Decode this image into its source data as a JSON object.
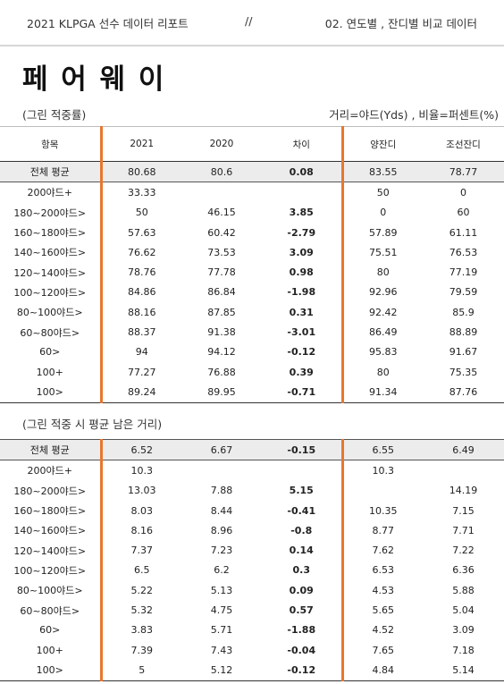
{
  "header": {
    "left": "2021 KLPGA 선수 데이터 리포트",
    "mid": "//",
    "right": "02. 연도별 , 잔디별 비교 데이터"
  },
  "title": "페 어 웨 이",
  "units_note": "거리=야드(Yds) , 비율=퍼센트(%)",
  "columns": [
    "항목",
    "2021",
    "2020",
    "차이",
    "양잔디",
    "조선잔디"
  ],
  "table1": {
    "caption": "(그린 적중률)",
    "rows": [
      [
        "전체 평균",
        "80.68",
        "80.6",
        "0.08",
        "83.55",
        "78.77"
      ],
      [
        "200야드+",
        "33.33",
        "",
        "",
        "50",
        "0"
      ],
      [
        "180~200야드>",
        "50",
        "46.15",
        "3.85",
        "0",
        "60"
      ],
      [
        "160~180야드>",
        "57.63",
        "60.42",
        "-2.79",
        "57.89",
        "61.11"
      ],
      [
        "140~160야드>",
        "76.62",
        "73.53",
        "3.09",
        "75.51",
        "76.53"
      ],
      [
        "120~140야드>",
        "78.76",
        "77.78",
        "0.98",
        "80",
        "77.19"
      ],
      [
        "100~120야드>",
        "84.86",
        "86.84",
        "-1.98",
        "92.96",
        "79.59"
      ],
      [
        "80~100야드>",
        "88.16",
        "87.85",
        "0.31",
        "92.42",
        "85.9"
      ],
      [
        "60~80야드>",
        "88.37",
        "91.38",
        "-3.01",
        "86.49",
        "88.89"
      ],
      [
        "60>",
        "94",
        "94.12",
        "-0.12",
        "95.83",
        "91.67"
      ],
      [
        "100+",
        "77.27",
        "76.88",
        "0.39",
        "80",
        "75.35"
      ],
      [
        "100>",
        "89.24",
        "89.95",
        "-0.71",
        "91.34",
        "87.76"
      ]
    ]
  },
  "table2": {
    "caption": "(그린 적중 시 평균 남은 거리)",
    "rows": [
      [
        "전체 평균",
        "6.52",
        "6.67",
        "-0.15",
        "6.55",
        "6.49"
      ],
      [
        "200야드+",
        "10.3",
        "",
        "",
        "10.3",
        ""
      ],
      [
        "180~200야드>",
        "13.03",
        "7.88",
        "5.15",
        "",
        "14.19"
      ],
      [
        "160~180야드>",
        "8.03",
        "8.44",
        "-0.41",
        "10.35",
        "7.15"
      ],
      [
        "140~160야드>",
        "8.16",
        "8.96",
        "-0.8",
        "8.77",
        "7.71"
      ],
      [
        "120~140야드>",
        "7.37",
        "7.23",
        "0.14",
        "7.62",
        "7.22"
      ],
      [
        "100~120야드>",
        "6.5",
        "6.2",
        "0.3",
        "6.53",
        "6.36"
      ],
      [
        "80~100야드>",
        "5.22",
        "5.13",
        "0.09",
        "4.53",
        "5.88"
      ],
      [
        "60~80야드>",
        "5.32",
        "4.75",
        "0.57",
        "5.65",
        "5.04"
      ],
      [
        "60>",
        "3.83",
        "5.71",
        "-1.88",
        "4.52",
        "3.09"
      ],
      [
        "100+",
        "7.39",
        "7.43",
        "-0.04",
        "7.65",
        "7.18"
      ],
      [
        "100>",
        "5",
        "5.12",
        "-0.12",
        "4.84",
        "5.14"
      ]
    ]
  },
  "colors": {
    "accent": "#e8772e",
    "avg_row_bg": "#ececec"
  }
}
